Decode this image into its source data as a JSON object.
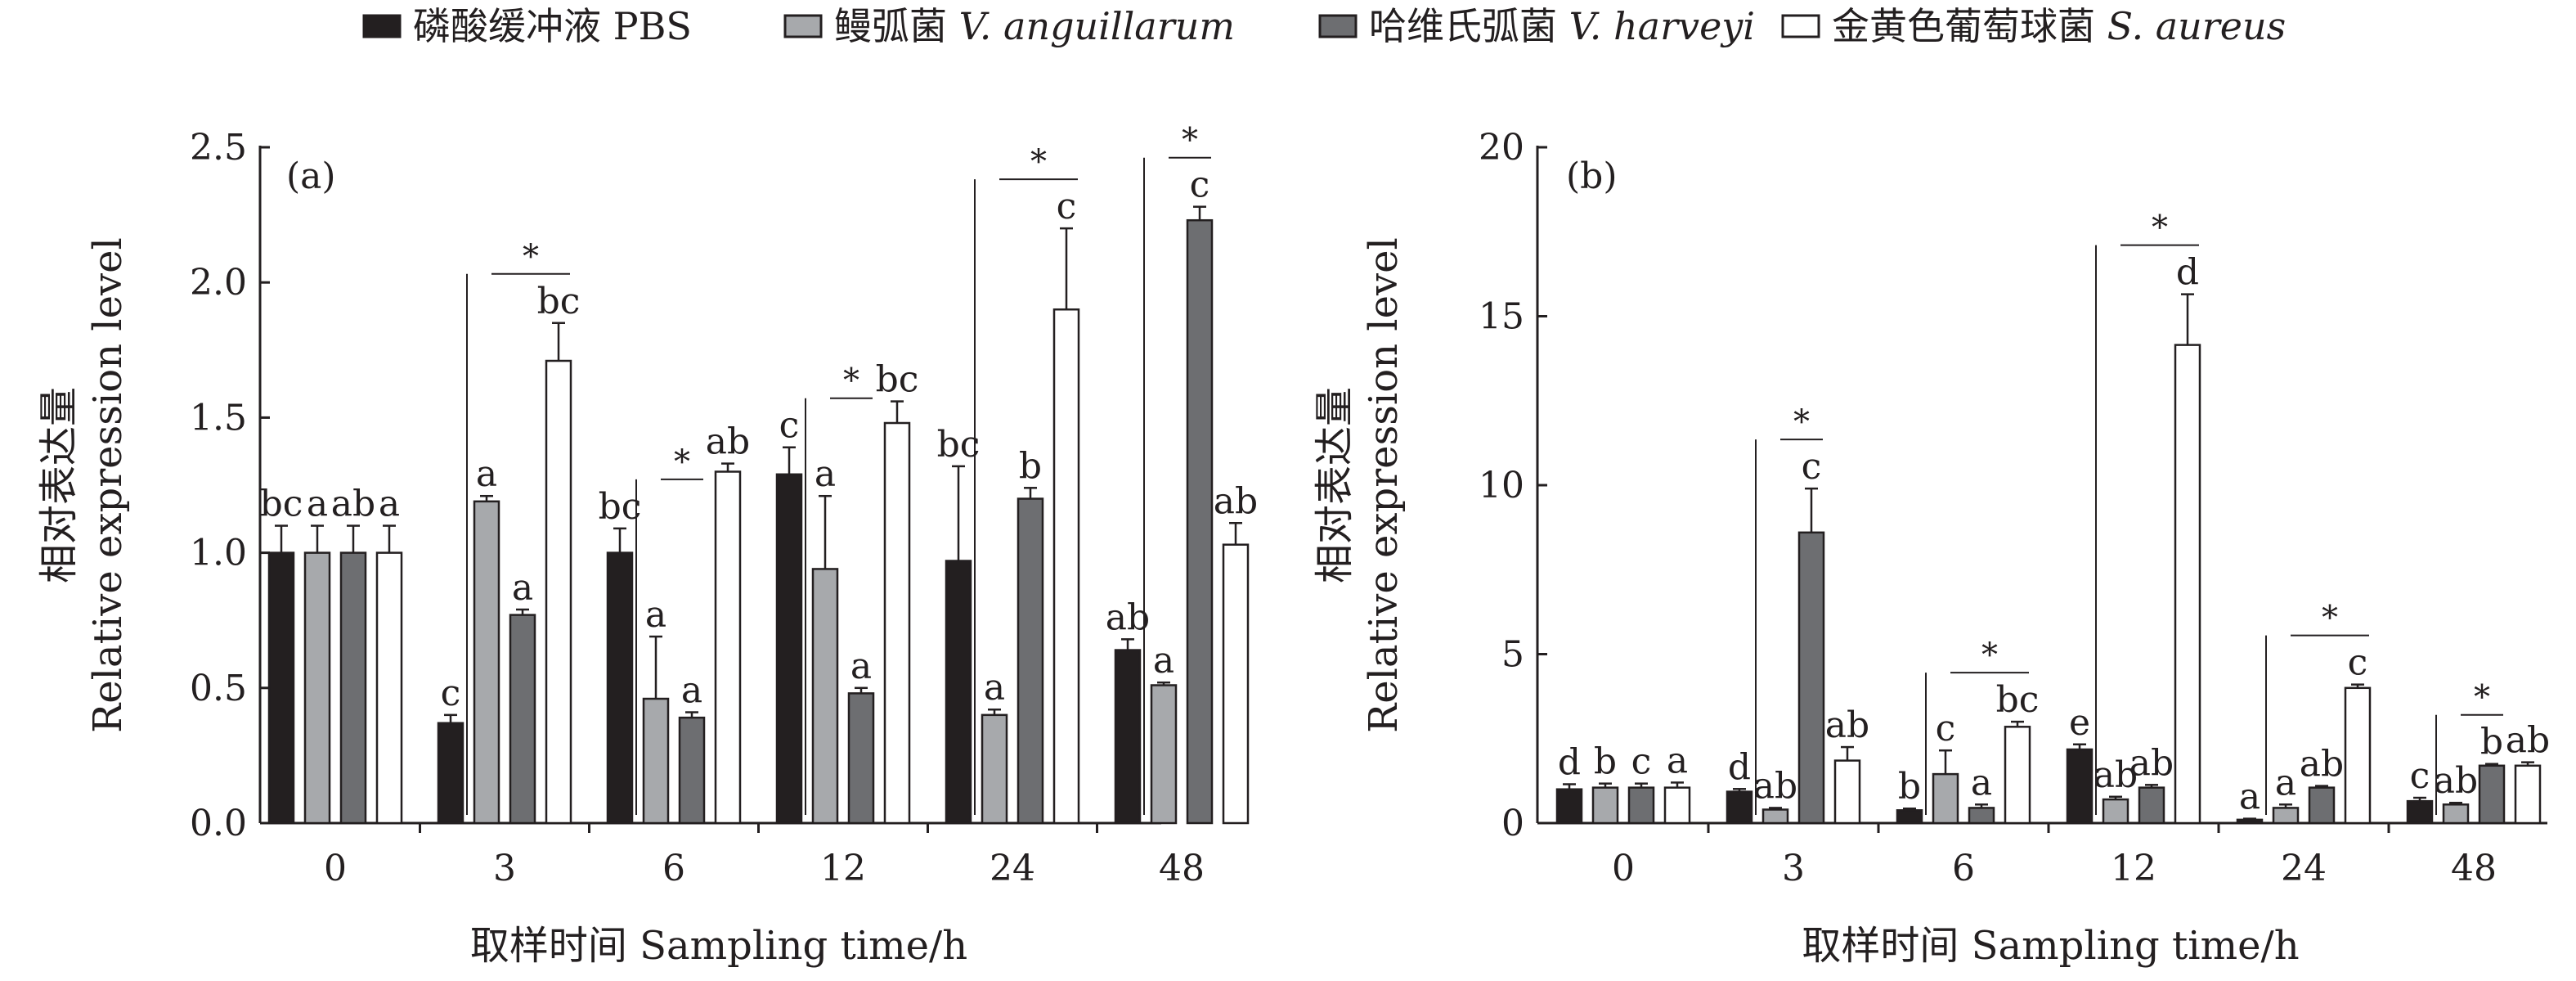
{
  "legend": [
    {
      "label": "磷酸缓冲液 PBS",
      "cn": "磷酸缓冲液 ",
      "sci": "PBS",
      "italic": false,
      "color": "#231f20"
    },
    {
      "label": "鳗弧菌 V. anguillarum",
      "cn": "鳗弧菌 ",
      "sci": "V. anguillarum",
      "italic": true,
      "color": "#a7a9ac"
    },
    {
      "label": "哈维氏弧菌 V. harveyi",
      "cn": "哈维氏弧菌 ",
      "sci": "V. harveyi",
      "italic": true,
      "color": "#6d6e71"
    },
    {
      "label": "金黄色葡萄球菌 S. aureus",
      "cn": "金黄色葡萄球菌 ",
      "sci": "S. aureus",
      "italic": true,
      "color": "#ffffff"
    }
  ],
  "chart_data": [
    {
      "type": "bar",
      "panel_label": "(a)",
      "xlabel": "取样时间 Sampling time/h",
      "ylabel_cn": "相对表达量",
      "ylabel_en": "Relative expression level",
      "categories": [
        "0",
        "3",
        "6",
        "12",
        "24",
        "48"
      ],
      "ylim": [
        0,
        2.5
      ],
      "yticks": [
        "0.0",
        "0.5",
        "1.0",
        "1.5",
        "2.0",
        "2.5"
      ],
      "series": [
        {
          "name": "磷酸缓冲液 PBS",
          "values": [
            1.0,
            0.37,
            1.0,
            1.29,
            0.97,
            0.64
          ],
          "errors": [
            0.1,
            0.03,
            0.09,
            0.1,
            0.35,
            0.04
          ],
          "letters": [
            "bc",
            "c",
            "bc",
            "c",
            "bc",
            "ab"
          ]
        },
        {
          "name": "鳗弧菌 V. anguillarum",
          "values": [
            1.0,
            1.19,
            0.46,
            0.94,
            0.4,
            0.51
          ],
          "errors": [
            0.1,
            0.02,
            0.23,
            0.27,
            0.02,
            0.01
          ],
          "letters": [
            "a",
            "a",
            "a",
            "a",
            "a",
            "a"
          ]
        },
        {
          "name": "哈维氏弧菌 V. harveyi",
          "values": [
            1.0,
            0.77,
            0.39,
            0.48,
            1.2,
            2.23
          ],
          "errors": [
            0.1,
            0.02,
            0.02,
            0.02,
            0.04,
            0.05
          ],
          "letters": [
            "ab",
            "a",
            "a",
            "a",
            "b",
            "c"
          ]
        },
        {
          "name": "金黄色葡萄球菌 S. aureus",
          "values": [
            1.0,
            1.71,
            1.3,
            1.48,
            1.9,
            1.03
          ],
          "errors": [
            0.1,
            0.14,
            0.03,
            0.08,
            0.3,
            0.08
          ],
          "letters": [
            "a",
            "bc",
            "ab",
            "bc",
            "c",
            "ab"
          ]
        }
      ],
      "significance": [
        {
          "category_index": 1,
          "from_series": 0,
          "to_series": 3,
          "label": "*"
        },
        {
          "category_index": 2,
          "from_series": 0,
          "to_series": 2,
          "label": "*"
        },
        {
          "category_index": 3,
          "from_series": 0,
          "to_series": 2,
          "label": "*"
        },
        {
          "category_index": 4,
          "from_series": 0,
          "to_series": 3,
          "label": "*"
        },
        {
          "category_index": 5,
          "from_series": 0,
          "to_series": 2,
          "label": "*"
        }
      ]
    },
    {
      "type": "bar",
      "panel_label": "(b)",
      "xlabel": "取样时间 Sampling time/h",
      "ylabel_cn": "相对表达量",
      "ylabel_en": "Relative expression level",
      "categories": [
        "0",
        "3",
        "6",
        "12",
        "24",
        "48"
      ],
      "ylim": [
        0,
        20
      ],
      "yticks": [
        "0",
        "5",
        "10",
        "15",
        "20"
      ],
      "series": [
        {
          "name": "磷酸缓冲液 PBS",
          "values": [
            1.0,
            0.93,
            0.38,
            2.18,
            0.1,
            0.65
          ],
          "errors": [
            0.15,
            0.08,
            0.05,
            0.15,
            0.03,
            0.1
          ],
          "letters": [
            "d",
            "d",
            "b",
            "e",
            "a",
            "c"
          ]
        },
        {
          "name": "鳗弧菌 V. anguillarum",
          "values": [
            1.05,
            0.4,
            1.45,
            0.7,
            0.45,
            0.55
          ],
          "errors": [
            0.12,
            0.05,
            0.7,
            0.08,
            0.1,
            0.05
          ],
          "letters": [
            "b",
            "ab",
            "c",
            "ab",
            "a",
            "ab"
          ]
        },
        {
          "name": "哈维氏弧菌 V. harveyi",
          "values": [
            1.05,
            8.6,
            0.45,
            1.05,
            1.05,
            1.7
          ],
          "errors": [
            0.12,
            1.3,
            0.1,
            0.08,
            0.05,
            0.05
          ],
          "letters": [
            "c",
            "c",
            "a",
            "ab",
            "ab",
            "b"
          ]
        },
        {
          "name": "金黄色葡萄球菌 S. aureus",
          "values": [
            1.05,
            1.85,
            2.85,
            14.15,
            4.0,
            1.7
          ],
          "errors": [
            0.15,
            0.4,
            0.15,
            1.5,
            0.1,
            0.1
          ],
          "letters": [
            "a",
            "ab",
            "bc",
            "d",
            "c",
            "ab"
          ]
        }
      ],
      "significance": [
        {
          "category_index": 1,
          "from_series": 0,
          "to_series": 2,
          "label": "*"
        },
        {
          "category_index": 2,
          "from_series": 0,
          "to_series": 3,
          "label": "*"
        },
        {
          "category_index": 3,
          "from_series": 0,
          "to_series": 3,
          "label": "*"
        },
        {
          "category_index": 4,
          "from_series": 0,
          "to_series": 3,
          "label": "*"
        },
        {
          "category_index": 5,
          "from_series": 0,
          "to_series": 2,
          "label": "*"
        }
      ]
    }
  ]
}
